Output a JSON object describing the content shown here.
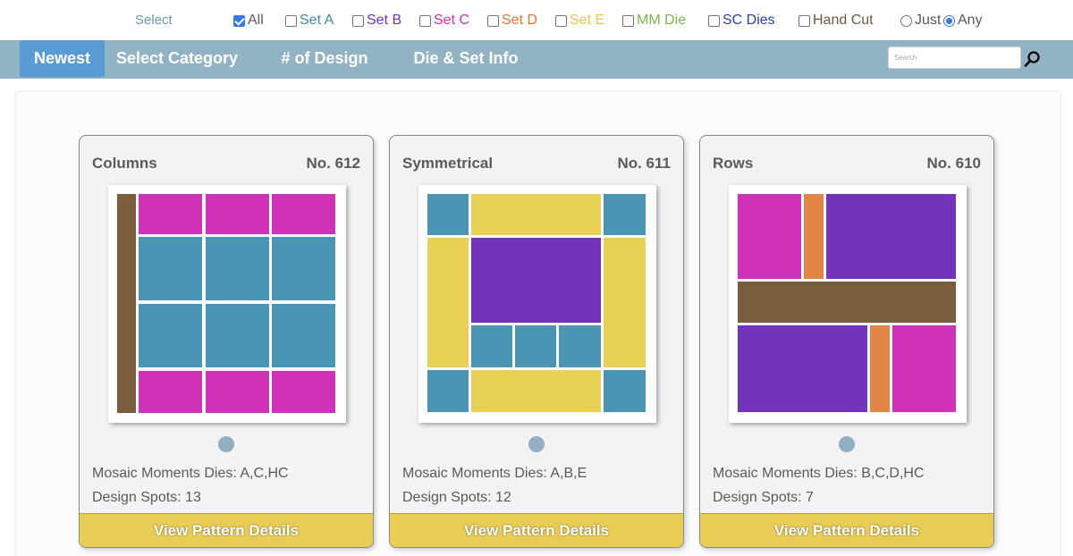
{
  "filters": {
    "select_label": "Select",
    "options": [
      {
        "label": "All",
        "checked": true,
        "color": "#5a5a5a"
      },
      {
        "label": "Set A",
        "checked": false,
        "color": "#3a8ba6"
      },
      {
        "label": "Set B",
        "checked": false,
        "color": "#7a2fc1"
      },
      {
        "label": "Set C",
        "checked": false,
        "color": "#d12fb8"
      },
      {
        "label": "Set D",
        "checked": false,
        "color": "#e5762a"
      },
      {
        "label": "Set E",
        "checked": false,
        "color": "#e8c64a"
      },
      {
        "label": "MM Die",
        "checked": false,
        "color": "#7bb84a"
      },
      {
        "label": "SC Dies",
        "checked": false,
        "color": "#2a3fb6"
      },
      {
        "label": "Hand Cut",
        "checked": false,
        "color": "#6e5a3a"
      }
    ],
    "match_mode": [
      {
        "label": "Just",
        "checked": false
      },
      {
        "label": "Any",
        "checked": true
      }
    ]
  },
  "nav": {
    "items": [
      "Newest",
      "Select Category",
      "# of Design Spots",
      "Die & Set Info"
    ],
    "active": "Newest",
    "search_placeholder": "Search"
  },
  "colors": {
    "brown": "#785e3c",
    "magenta": "#d031b9",
    "teal": "#4a94b4",
    "yellow": "#e8d155",
    "purple": "#7433bb",
    "orange": "#e28444"
  },
  "cards": [
    {
      "name": "Columns",
      "number": "No. 612",
      "dies": "Mosaic Moments Dies: A,C,HC",
      "spots": "Design Spots: 13",
      "button": "View Pattern Details",
      "pattern": [
        [
          "brown",
          1,
          1,
          21,
          245
        ],
        [
          "magenta",
          25,
          1,
          71,
          45
        ],
        [
          "magenta",
          100,
          1,
          71,
          45
        ],
        [
          "magenta",
          174,
          1,
          71,
          45
        ],
        [
          "teal",
          25,
          49,
          71,
          71
        ],
        [
          "teal",
          100,
          49,
          71,
          71
        ],
        [
          "teal",
          174,
          49,
          71,
          71
        ],
        [
          "teal",
          25,
          124,
          71,
          71
        ],
        [
          "teal",
          100,
          124,
          71,
          71
        ],
        [
          "teal",
          174,
          124,
          71,
          71
        ],
        [
          "magenta",
          25,
          199,
          71,
          47
        ],
        [
          "magenta",
          100,
          199,
          71,
          47
        ],
        [
          "magenta",
          174,
          199,
          71,
          47
        ]
      ]
    },
    {
      "name": "Symmetrical",
      "number": "No. 611",
      "dies": "Mosaic Moments Dies: A,B,E",
      "spots": "Design Spots: 12",
      "button": "View Pattern Details",
      "pattern": [
        [
          "teal",
          1,
          1,
          46,
          46
        ],
        [
          "yellow",
          50,
          1,
          145,
          46
        ],
        [
          "teal",
          198,
          1,
          47,
          46
        ],
        [
          "yellow",
          1,
          50,
          46,
          145
        ],
        [
          "purple",
          50,
          50,
          145,
          95
        ],
        [
          "yellow",
          198,
          50,
          47,
          145
        ],
        [
          "teal",
          50,
          148,
          46,
          47
        ],
        [
          "teal",
          99,
          148,
          46,
          47
        ],
        [
          "teal",
          148,
          148,
          47,
          47
        ],
        [
          "teal",
          1,
          198,
          46,
          47
        ],
        [
          "yellow",
          50,
          198,
          145,
          47
        ],
        [
          "teal",
          198,
          198,
          47,
          47
        ]
      ]
    },
    {
      "name": "Rows",
      "number": "No. 610",
      "dies": "Mosaic Moments Dies: B,C,D,HC",
      "spots": "Design Spots: 7",
      "button": "View Pattern Details",
      "pattern": [
        [
          "magenta",
          1,
          1,
          71,
          95
        ],
        [
          "orange",
          75,
          1,
          22,
          95
        ],
        [
          "purple",
          100,
          1,
          145,
          95
        ],
        [
          "brown",
          1,
          99,
          244,
          46
        ],
        [
          "purple",
          1,
          148,
          145,
          97
        ],
        [
          "orange",
          149,
          148,
          22,
          97
        ],
        [
          "magenta",
          174,
          148,
          71,
          97
        ]
      ]
    }
  ]
}
